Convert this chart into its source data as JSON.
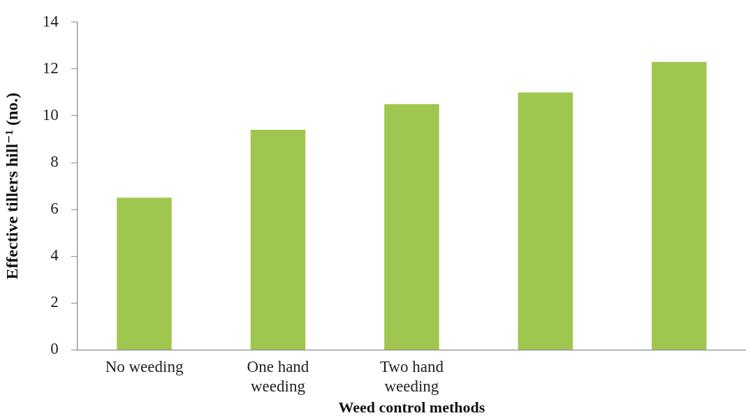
{
  "chart_data": {
    "type": "bar",
    "xlabel": "Weed control methods",
    "ylabel": "Effective tillers hill⁻¹ (no.)",
    "categories": [
      "No weeding",
      "One hand weeding",
      "Two hand weeding",
      null,
      null
    ],
    "values": [
      6.5,
      9.4,
      10.5,
      11.0,
      12.3
    ],
    "color": "#9fc64f",
    "ylim": [
      0,
      14
    ],
    "yticks": [
      0,
      2,
      4,
      6,
      8,
      10,
      12,
      14
    ]
  }
}
